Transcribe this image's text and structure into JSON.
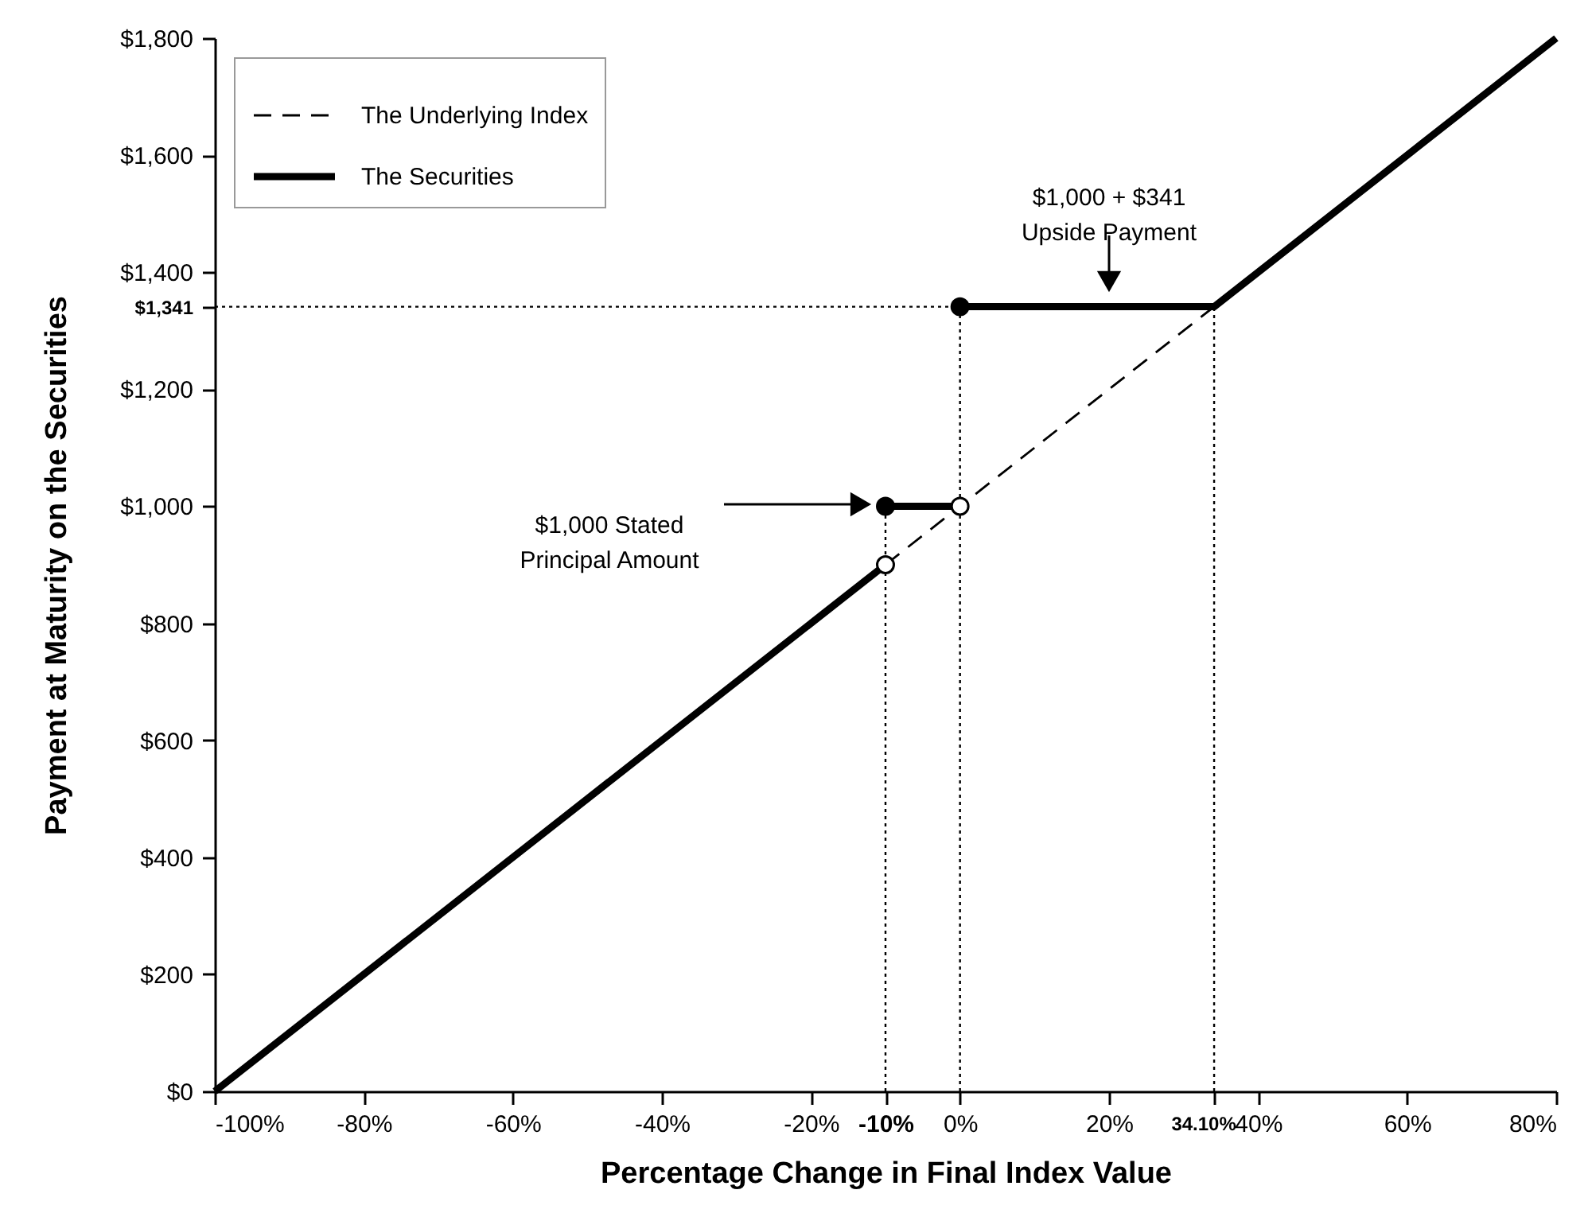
{
  "chart_data": {
    "type": "line",
    "xlabel": "Percentage Change in Final Index Value",
    "ylabel": "Payment at Maturity on the Securities",
    "xlim": [
      -100,
      80
    ],
    "ylim": [
      0,
      1800
    ],
    "xticks": [
      {
        "value": -100,
        "label": "-100%"
      },
      {
        "value": -80,
        "label": "-80%"
      },
      {
        "value": -60,
        "label": "-60%"
      },
      {
        "value": -40,
        "label": "-40%"
      },
      {
        "value": -20,
        "label": "-20%"
      },
      {
        "value": -10,
        "label": "-10%"
      },
      {
        "value": 0,
        "label": "0%"
      },
      {
        "value": 20,
        "label": "20%"
      },
      {
        "value": 34.1,
        "label": "34.10%"
      },
      {
        "value": 40,
        "label": "40%"
      },
      {
        "value": 60,
        "label": "60%"
      },
      {
        "value": 80,
        "label": "80%"
      }
    ],
    "yticks": [
      {
        "value": 0,
        "label": "$0"
      },
      {
        "value": 200,
        "label": "$200"
      },
      {
        "value": 400,
        "label": "$400"
      },
      {
        "value": 600,
        "label": "$600"
      },
      {
        "value": 800,
        "label": "$800"
      },
      {
        "value": 1000,
        "label": "$1,000"
      },
      {
        "value": 1200,
        "label": "$1,200"
      },
      {
        "value": 1341,
        "label": "$1,341"
      },
      {
        "value": 1400,
        "label": "$1,400"
      },
      {
        "value": 1600,
        "label": "$1,600"
      },
      {
        "value": 1800,
        "label": "$1,800"
      }
    ],
    "legend": "top left",
    "series": [
      {
        "line_style": "dotted",
        "color": "#000000",
        "x": [
          -10,
          -10
        ],
        "values": [
          0,
          1000
        ]
      },
      {
        "line_style": "dotted",
        "color": "#000000",
        "x": [
          0,
          0
        ],
        "values": [
          0,
          1341
        ]
      },
      {
        "line_style": "dotted",
        "color": "#000000",
        "x": [
          34.1,
          34.1
        ],
        "values": [
          0,
          1341
        ]
      },
      {
        "line_style": "dotted",
        "color": "#000000",
        "x": [
          -100,
          34.1
        ],
        "values": [
          1341,
          1341
        ]
      },
      {
        "name": "The Underlying Index",
        "line_style": "dashed",
        "color": "#000000",
        "x": [
          -10,
          0,
          34.1
        ],
        "values": [
          900,
          1000,
          1341
        ]
      },
      {
        "name": "The Securities",
        "line_style": "solid",
        "color": "#000000",
        "x": [
          -100,
          -10,
          null,
          -10,
          0,
          null,
          0,
          34.1,
          80
        ],
        "values": [
          0,
          900,
          null,
          1000,
          1000,
          null,
          1341,
          1341,
          1800
        ]
      },
      {
        "type": "scatter",
        "marker": "circle",
        "color": "#000000",
        "x": [
          -10,
          0
        ],
        "values": [
          1000,
          1341
        ]
      },
      {
        "type": "scatter",
        "marker": "circle",
        "color": "#ffffff",
        "x": [
          -10,
          0
        ],
        "values": [
          900,
          1000
        ]
      }
    ],
    "annotations": [
      "$1,000 Stated\nPrincipal Amount",
      "$1,000 + $341\nUpside Payment"
    ]
  }
}
